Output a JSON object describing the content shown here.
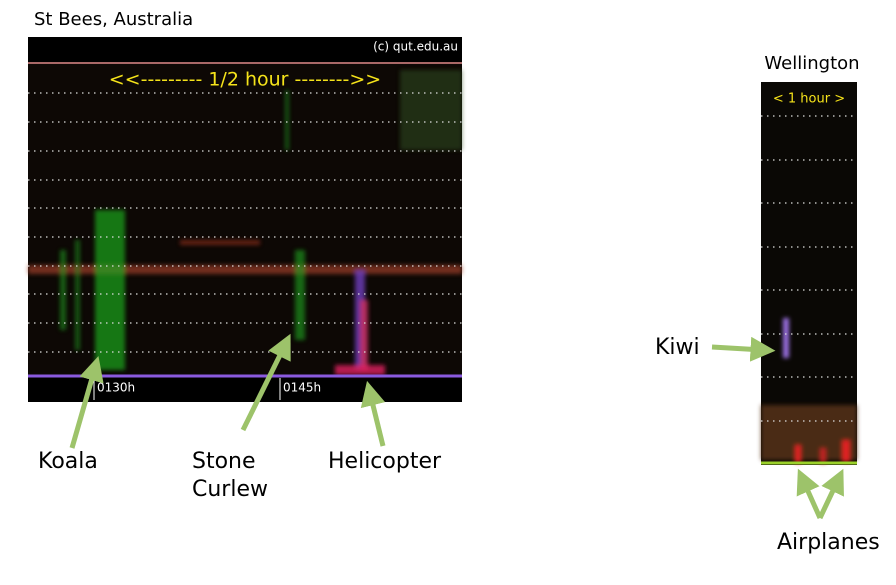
{
  "left_panel": {
    "title": "St Bees, Australia",
    "copyright": "(c) qut.edu.au",
    "scale_label": "<<--------- 1/2 hour -------->>",
    "time_labels": [
      "0130h",
      "0145h"
    ]
  },
  "right_panel": {
    "title": "Wellington",
    "scale_label": "< 1 hour >"
  },
  "annotations": {
    "koala": "Koala",
    "stone_curlew": [
      "Stone",
      "Curlew"
    ],
    "helicopter": "Helicopter",
    "kiwi": "Kiwi",
    "airplanes": "Airplanes"
  }
}
